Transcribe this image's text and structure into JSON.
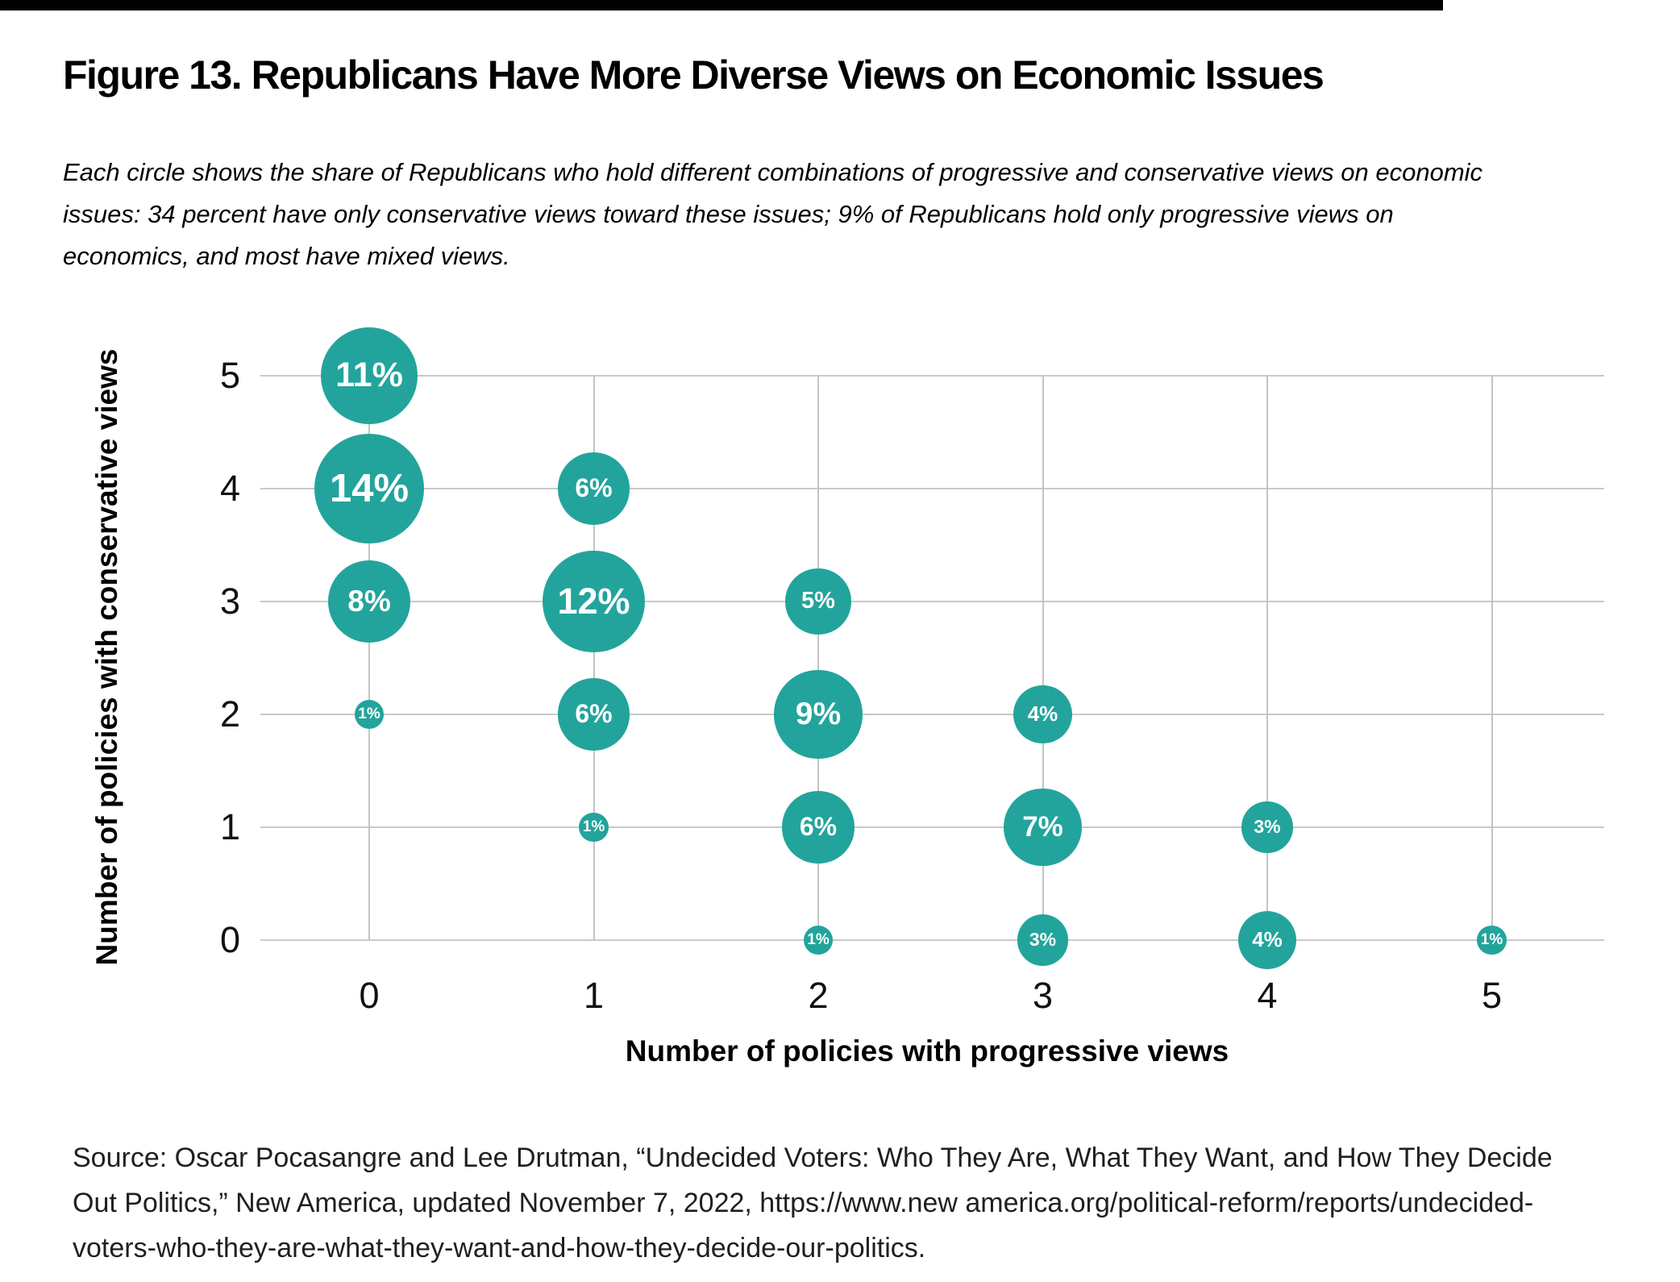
{
  "title": "Figure 13. Republicans Have More Diverse Views on Economic Issues",
  "subtitle": "Each circle shows the share of Republicans who hold different combinations of progressive and conservative views on economic issues: 34 percent have only conservative views toward these issues; 9% of Republicans hold only progressive views on economics, and most have mixed views.",
  "source": "Source: Oscar Pocasangre and Lee Drutman, “Undecided Voters: Who They Are, What They Want, and How They Decide Out Politics,” New America, updated November 7, 2022, https://www.new america.org/political-reform/reports/undecided-voters-who-they-are-what-they-want-and-how-they-decide-our-politics.",
  "colors": {
    "bubble": "#22a49c",
    "bubble_label": "#ffffff",
    "grid": "#c9c9c9",
    "text": "#000000",
    "top_bar": "#000000"
  },
  "chart_data": {
    "type": "scatter",
    "subtype": "bubble",
    "title": "Figure 13. Republicans Have More Diverse Views on Economic Issues",
    "xlabel": "Number of policies with progressive views",
    "ylabel": "Number of policies with conservative views",
    "x_ticks": [
      "0",
      "1",
      "2",
      "3",
      "4",
      "5"
    ],
    "y_ticks": [
      "0",
      "1",
      "2",
      "3",
      "4",
      "5"
    ],
    "xlim": [
      -0.5,
      5.5
    ],
    "ylim": [
      -0.5,
      5.5
    ],
    "grid": true,
    "legend": false,
    "value_unit": "%",
    "size_encoding": "area proportional to percent value",
    "points": [
      {
        "x": 0,
        "y": 5,
        "value": 11,
        "label": "11%"
      },
      {
        "x": 0,
        "y": 4,
        "value": 14,
        "label": "14%"
      },
      {
        "x": 0,
        "y": 3,
        "value": 8,
        "label": "8%"
      },
      {
        "x": 0,
        "y": 2,
        "value": 1,
        "label": "1%"
      },
      {
        "x": 1,
        "y": 4,
        "value": 6,
        "label": "6%"
      },
      {
        "x": 1,
        "y": 3,
        "value": 12,
        "label": "12%"
      },
      {
        "x": 1,
        "y": 2,
        "value": 6,
        "label": "6%"
      },
      {
        "x": 1,
        "y": 1,
        "value": 1,
        "label": "1%"
      },
      {
        "x": 2,
        "y": 3,
        "value": 5,
        "label": "5%"
      },
      {
        "x": 2,
        "y": 2,
        "value": 9,
        "label": "9%"
      },
      {
        "x": 2,
        "y": 1,
        "value": 6,
        "label": "6%"
      },
      {
        "x": 2,
        "y": 0,
        "value": 1,
        "label": "1%"
      },
      {
        "x": 3,
        "y": 2,
        "value": 4,
        "label": "4%"
      },
      {
        "x": 3,
        "y": 1,
        "value": 7,
        "label": "7%"
      },
      {
        "x": 3,
        "y": 0,
        "value": 3,
        "label": "3%"
      },
      {
        "x": 4,
        "y": 1,
        "value": 3,
        "label": "3%"
      },
      {
        "x": 4,
        "y": 0,
        "value": 4,
        "label": "4%"
      },
      {
        "x": 5,
        "y": 0,
        "value": 1,
        "label": "1%"
      }
    ]
  }
}
